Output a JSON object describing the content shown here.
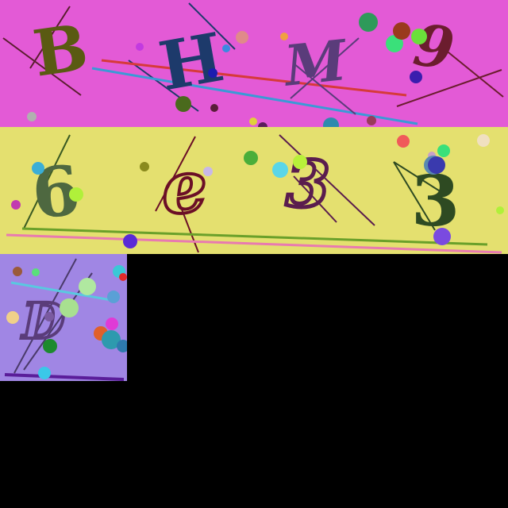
{
  "captcha_tiles": [
    {
      "characters": [
        "B",
        "H",
        "M",
        "9"
      ],
      "background_color": "#e35ad6",
      "character_colors": [
        "#5a5a12",
        "#1d3a6b",
        "#5a3c7a",
        "#6b1d2e"
      ]
    },
    {
      "characters": [
        "6",
        "e",
        "3",
        "3"
      ],
      "background_color": "#e4e06f",
      "character_colors": [
        "#4e6840",
        "#6b0f26",
        "#5a1d4e",
        "#2e4a22"
      ]
    },
    {
      "characters": [
        "D"
      ],
      "background_color": "#a086e4",
      "character_colors": [
        "#5a3c7a"
      ]
    }
  ],
  "empty_region_color": "#000000"
}
